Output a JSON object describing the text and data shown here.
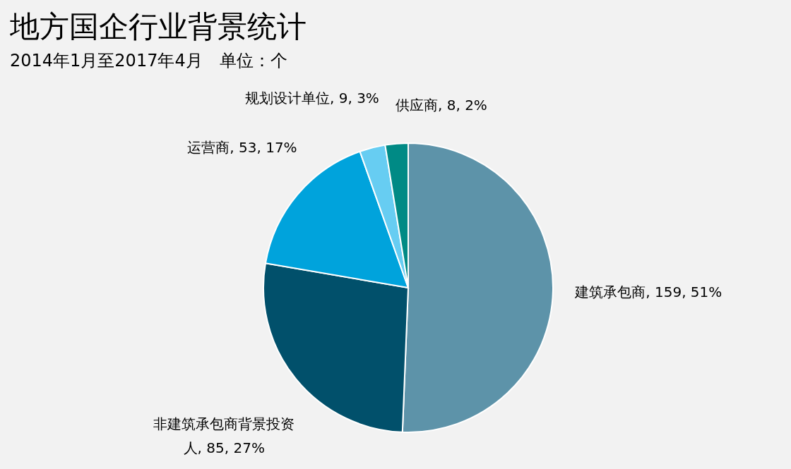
{
  "chart_data": {
    "type": "pie",
    "title": "地方国企行业背景统计",
    "subtitle": "2014年1月至2017年4月　单位：个",
    "categories": [
      "建筑承包商",
      "非建筑承包商背景投资人",
      "运营商",
      "规划设计单位",
      "供应商"
    ],
    "values": [
      159,
      85,
      53,
      9,
      8
    ],
    "colors": [
      "#5d93a9",
      "#01506b",
      "#00a3dc",
      "#67cdf2",
      "#008a85"
    ],
    "value_labels": [
      "159, 51%",
      "85, 27%",
      "53, 17%",
      "9, 3%",
      "8, 2%"
    ],
    "legend": false
  }
}
